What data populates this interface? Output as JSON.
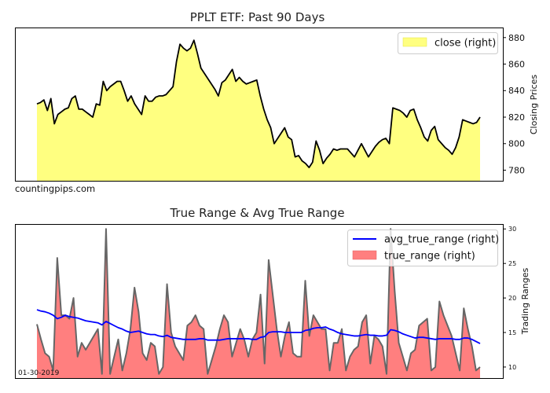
{
  "chart_data": [
    {
      "type": "area",
      "title": "PPLT ETF: Past 90 Days",
      "ylabel": "Closing Prices",
      "ylim": [
        772,
        887
      ],
      "yticks": [
        780,
        800,
        820,
        840,
        860,
        880
      ],
      "watermark": "countingpips.com",
      "colors": {
        "fill": "#ffff80",
        "line": "#000000"
      },
      "series": [
        {
          "name": "close (right)",
          "values": [
            830,
            831,
            833,
            825,
            834,
            815,
            822,
            824,
            826,
            827,
            834,
            836,
            826,
            826,
            824,
            822,
            820,
            830,
            829,
            847,
            840,
            843,
            845,
            847,
            847,
            840,
            832,
            836,
            830,
            826,
            822,
            836,
            832,
            832,
            835,
            836,
            836,
            837,
            840,
            843,
            862,
            875,
            872,
            870,
            872,
            878,
            868,
            857,
            853,
            849,
            845,
            841,
            836,
            846,
            848,
            852,
            856,
            847,
            850,
            847,
            845,
            846,
            847,
            848,
            836,
            826,
            818,
            812,
            800,
            804,
            808,
            812,
            805,
            803,
            790,
            791,
            787,
            785,
            782,
            786,
            802,
            795,
            785,
            789,
            792,
            796,
            795,
            796,
            796,
            796,
            793,
            790,
            795,
            800,
            795,
            790,
            794,
            798,
            801,
            803,
            804,
            800,
            827,
            826,
            825,
            823,
            820,
            825,
            826,
            818,
            812,
            805,
            802,
            810,
            813,
            803,
            800,
            797,
            795,
            792,
            797,
            805,
            818,
            817,
            816,
            815,
            816,
            820
          ]
        }
      ]
    },
    {
      "type": "area",
      "title": "True Range & Avg True Range",
      "ylabel": "Trading Ranges",
      "ylim": [
        8.4,
        30.6
      ],
      "yticks": [
        10,
        15,
        20,
        25,
        30
      ],
      "start_date": "01-30-2019",
      "colors": {
        "tr_fill": "#ff7f7f",
        "tr_line": "#666666",
        "atr_line": "#0000ff"
      },
      "series": [
        {
          "name": "true_range (right)",
          "values": [
            16.2,
            14.0,
            12.0,
            11.5,
            9.5,
            25.8,
            17.5,
            17.5,
            17.0,
            20.0,
            11.5,
            13.5,
            12.5,
            13.5,
            14.5,
            15.5,
            9.0,
            30.0,
            9.0,
            11.5,
            14.0,
            9.5,
            12.0,
            15.5,
            21.5,
            18.0,
            12.0,
            11.0,
            13.5,
            13.0,
            9.0,
            10.0,
            22.0,
            15.0,
            13.0,
            12.0,
            11.0,
            16.0,
            16.5,
            17.5,
            16.0,
            15.5,
            9.0,
            11.0,
            13.0,
            15.5,
            17.5,
            16.5,
            11.5,
            13.5,
            15.5,
            14.0,
            11.5,
            14.0,
            15.0,
            20.5,
            10.5,
            25.5,
            20.5,
            15.5,
            11.5,
            14.5,
            16.5,
            12.0,
            11.5,
            11.5,
            22.5,
            14.5,
            17.5,
            16.5,
            15.5,
            15.5,
            9.5,
            13.5,
            13.5,
            15.5,
            9.5,
            11.5,
            12.5,
            13.0,
            16.5,
            17.5,
            10.5,
            14.5,
            14.0,
            13.0,
            9.0,
            30.0,
            21.0,
            13.5,
            11.5,
            9.5,
            12.0,
            12.5,
            16.0,
            16.5,
            17.0,
            9.5,
            10.0,
            19.5,
            17.5,
            16.0,
            14.5,
            12.0,
            9.5,
            18.5,
            15.5,
            13.0,
            9.5,
            10.0
          ]
        },
        {
          "name": "avg_true_range (right)",
          "values": [
            18.3,
            18.1,
            18.0,
            17.8,
            17.5,
            17.0,
            17.2,
            17.5,
            17.3,
            17.2,
            17.1,
            16.9,
            16.7,
            16.6,
            16.5,
            16.4,
            16.1,
            16.6,
            16.3,
            16.0,
            15.7,
            15.5,
            15.2,
            15.0,
            15.1,
            15.2,
            15.0,
            14.8,
            14.7,
            14.7,
            14.5,
            14.4,
            14.6,
            14.3,
            14.2,
            14.1,
            14.0,
            14.0,
            14.0,
            14.0,
            14.1,
            14.1,
            13.9,
            13.9,
            13.9,
            13.9,
            14.0,
            14.1,
            14.1,
            14.1,
            14.1,
            14.1,
            14.1,
            14.0,
            14.0,
            14.3,
            14.4,
            15.0,
            15.1,
            15.1,
            15.1,
            15.0,
            15.0,
            15.0,
            15.0,
            15.0,
            15.3,
            15.4,
            15.6,
            15.7,
            15.7,
            15.8,
            15.5,
            15.3,
            15.0,
            14.8,
            14.7,
            14.6,
            14.5,
            14.5,
            14.6,
            14.7,
            14.6,
            14.6,
            14.5,
            14.5,
            14.6,
            15.4,
            15.3,
            15.1,
            14.8,
            14.6,
            14.4,
            14.2,
            14.3,
            14.3,
            14.2,
            14.1,
            14.0,
            14.1,
            14.1,
            14.1,
            14.1,
            14.0,
            14.0,
            14.2,
            14.2,
            14.0,
            13.7,
            13.4
          ]
        }
      ]
    }
  ]
}
